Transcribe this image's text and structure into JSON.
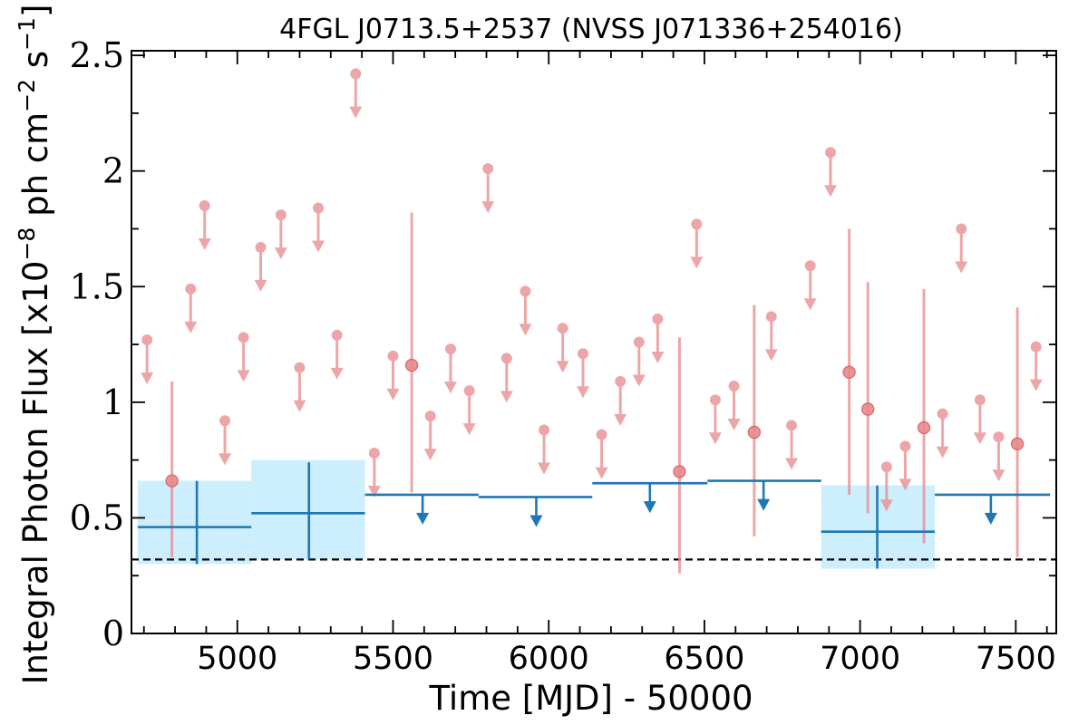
{
  "chart_data": {
    "type": "scatter",
    "title": "4FGL J0713.5+2537 (NVSS J071336+254016)",
    "xlabel": "Time [MJD] - 50000",
    "ylabel": "Integral Photon Flux [x10",
    "ylabel_exp": "−8",
    "ylabel_mid": " ph cm",
    "ylabel_exp2": "−2",
    "ylabel_end": " s",
    "ylabel_exp3": "−1",
    "ylabel_close": "]",
    "xlim": [
      4660,
      7630
    ],
    "ylim": [
      0,
      2.52
    ],
    "x_ticks": [
      5000,
      5500,
      6000,
      6500,
      7000,
      7500
    ],
    "x_tick_labels": [
      "5000",
      "5500",
      "6000",
      "6500",
      "7000",
      "7500"
    ],
    "y_ticks": [
      0,
      0.5,
      1,
      1.5,
      2,
      2.5
    ],
    "y_tick_labels": [
      "0",
      "0.5",
      "1",
      "1.5",
      "2",
      "2.5"
    ],
    "reference_level": 0.32,
    "colors": {
      "monthly": "#e8898c",
      "yearly": "#1f77b4",
      "yearly_band": "#cdeefc",
      "reference": "#000000"
    },
    "series": [
      {
        "kind": "monthly_upper_limits",
        "points": [
          {
            "x": 4710,
            "y": 1.27
          },
          {
            "x": 4850,
            "y": 1.49
          },
          {
            "x": 4895,
            "y": 1.85
          },
          {
            "x": 4960,
            "y": 0.92
          },
          {
            "x": 5020,
            "y": 1.28
          },
          {
            "x": 5075,
            "y": 1.67
          },
          {
            "x": 5140,
            "y": 1.81
          },
          {
            "x": 5200,
            "y": 1.15
          },
          {
            "x": 5260,
            "y": 1.84
          },
          {
            "x": 5320,
            "y": 1.29
          },
          {
            "x": 5380,
            "y": 2.42
          },
          {
            "x": 5440,
            "y": 0.78
          },
          {
            "x": 5500,
            "y": 1.2
          },
          {
            "x": 5620,
            "y": 0.94
          },
          {
            "x": 5685,
            "y": 1.23
          },
          {
            "x": 5745,
            "y": 1.05
          },
          {
            "x": 5805,
            "y": 2.01
          },
          {
            "x": 5865,
            "y": 1.19
          },
          {
            "x": 5925,
            "y": 1.48
          },
          {
            "x": 5985,
            "y": 0.88
          },
          {
            "x": 6045,
            "y": 1.32
          },
          {
            "x": 6110,
            "y": 1.21
          },
          {
            "x": 6170,
            "y": 0.86
          },
          {
            "x": 6230,
            "y": 1.09
          },
          {
            "x": 6290,
            "y": 1.26
          },
          {
            "x": 6350,
            "y": 1.36
          },
          {
            "x": 6475,
            "y": 1.77
          },
          {
            "x": 6535,
            "y": 1.01
          },
          {
            "x": 6595,
            "y": 1.07
          },
          {
            "x": 6715,
            "y": 1.37
          },
          {
            "x": 6780,
            "y": 0.9
          },
          {
            "x": 6840,
            "y": 1.59
          },
          {
            "x": 6905,
            "y": 2.08
          },
          {
            "x": 7085,
            "y": 0.72
          },
          {
            "x": 7145,
            "y": 0.81
          },
          {
            "x": 7265,
            "y": 0.95
          },
          {
            "x": 7325,
            "y": 1.75
          },
          {
            "x": 7385,
            "y": 1.01
          },
          {
            "x": 7445,
            "y": 0.85
          },
          {
            "x": 7565,
            "y": 1.24
          }
        ]
      },
      {
        "kind": "monthly_detections",
        "points": [
          {
            "x": 4790,
            "y": 0.66,
            "lo": 0.33,
            "hi": 1.09
          },
          {
            "x": 5560,
            "y": 1.16,
            "lo": 0.61,
            "hi": 1.82
          },
          {
            "x": 6420,
            "y": 0.7,
            "lo": 0.26,
            "hi": 1.28
          },
          {
            "x": 6660,
            "y": 0.87,
            "lo": 0.42,
            "hi": 1.42
          },
          {
            "x": 6965,
            "y": 1.13,
            "lo": 0.6,
            "hi": 1.75
          },
          {
            "x": 7025,
            "y": 0.97,
            "lo": 0.52,
            "hi": 1.52
          },
          {
            "x": 7205,
            "y": 0.89,
            "lo": 0.39,
            "hi": 1.49
          },
          {
            "x": 7505,
            "y": 0.82,
            "lo": 0.33,
            "hi": 1.41
          }
        ]
      },
      {
        "kind": "yearly_detections",
        "points": [
          {
            "x0": 4680,
            "x1": 5045,
            "xc": 4870,
            "y": 0.46,
            "lo": 0.3,
            "hi": 0.66,
            "band_lo": 0.3,
            "band_hi": 0.66
          },
          {
            "x0": 5045,
            "x1": 5410,
            "xc": 5230,
            "y": 0.52,
            "lo": 0.32,
            "hi": 0.74,
            "band_lo": 0.32,
            "band_hi": 0.75
          },
          {
            "x0": 6875,
            "x1": 7240,
            "xc": 7055,
            "y": 0.44,
            "lo": 0.28,
            "hi": 0.64,
            "band_lo": 0.28,
            "band_hi": 0.64
          }
        ]
      },
      {
        "kind": "yearly_upper_limits",
        "points": [
          {
            "x0": 5410,
            "x1": 5775,
            "xm": 5595,
            "y": 0.6
          },
          {
            "x0": 5775,
            "x1": 6140,
            "xm": 5960,
            "y": 0.59
          },
          {
            "x0": 6140,
            "x1": 6510,
            "xm": 6325,
            "y": 0.65
          },
          {
            "x0": 6510,
            "x1": 6875,
            "xm": 6690,
            "y": 0.66
          },
          {
            "x0": 7240,
            "x1": 7610,
            "xm": 7420,
            "y": 0.6
          }
        ]
      }
    ]
  }
}
